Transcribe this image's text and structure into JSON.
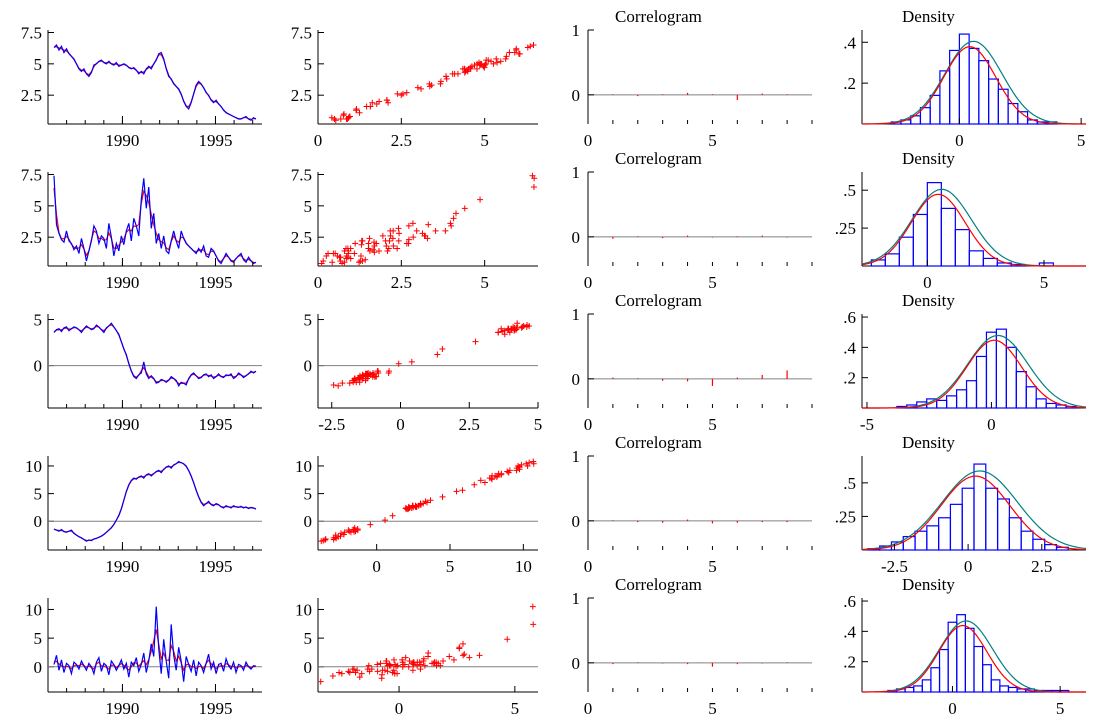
{
  "colors": {
    "actual": "#0000ff",
    "fitted": "#ff0000",
    "normal": "#008080",
    "hist": "#0000ff",
    "zero": "#808080",
    "axis": "#000000"
  },
  "chart_data": [
    {
      "type": "line",
      "series": [
        {
          "values": [
            6.3,
            6.5,
            6.1,
            6.4,
            5.9,
            6.2,
            5.8,
            5.6,
            5.4,
            5.0,
            4.6,
            4.4,
            4.6,
            4.2,
            4.0,
            4.3,
            4.9,
            5.0,
            5.2,
            5.3,
            5.1,
            5.0,
            5.2,
            5.0,
            4.9,
            5.1,
            4.8,
            4.9,
            5.0,
            4.9,
            4.7,
            4.6,
            4.7,
            4.5,
            4.2,
            4.4,
            4.2,
            4.6,
            4.8,
            4.6,
            5.0,
            5.3,
            5.8,
            5.9,
            5.4,
            4.6,
            4.0,
            3.8,
            3.4,
            3.2,
            3.0,
            2.6,
            2.0,
            1.6,
            1.4,
            1.9,
            2.6,
            3.3,
            3.6,
            3.4,
            3.1,
            2.7,
            2.5,
            2.1,
            1.9,
            2.1,
            1.8,
            1.6,
            1.3,
            1.1,
            1.0,
            0.9,
            0.8,
            0.7,
            0.6,
            0.6,
            0.7,
            0.8,
            0.6,
            0.5,
            0.7,
            0.6
          ]
        }
      ],
      "x_ticks": [
        1990,
        1995
      ],
      "ylim": [
        0.2,
        7.7
      ],
      "y_ticks": [
        2.5,
        5,
        7.5
      ],
      "y_tick_labels": [
        "2.5",
        "5",
        "7.5"
      ]
    },
    {
      "type": "scatter",
      "x_ticks": [
        0,
        2.5,
        5
      ],
      "x_tick_labels": [
        "0",
        "2.5",
        "5"
      ],
      "xlim": [
        0,
        6.6
      ],
      "ylim": [
        0.2,
        7.7
      ],
      "y_ticks": [
        2.5,
        5,
        7.5
      ],
      "y_tick_labels": [
        "2.5",
        "5",
        "7.5"
      ],
      "spread": 0.3
    },
    {
      "type": "bar",
      "title": "Correlogram",
      "values": [
        0.01,
        -0.02,
        0.01,
        0.03,
        0.01,
        -0.08,
        0.02,
        0.01
      ],
      "xlim": [
        0,
        9
      ],
      "ylim": [
        -0.45,
        1
      ],
      "x_ticks": [
        0,
        5
      ],
      "y_ticks": [
        0,
        1
      ]
    },
    {
      "type": "bar",
      "title": "Density",
      "bins": [
        -2.8,
        -2.4,
        -2.0,
        -1.6,
        -1.2,
        -0.8,
        -0.4,
        0.0,
        0.4,
        0.8,
        1.2,
        1.6,
        2.0,
        2.4,
        2.8,
        3.2,
        3.6
      ],
      "values": [
        0.01,
        0.02,
        0.04,
        0.08,
        0.14,
        0.26,
        0.36,
        0.44,
        0.37,
        0.31,
        0.22,
        0.17,
        0.1,
        0.06,
        0.02,
        0.01,
        0.01
      ],
      "xlim": [
        -4,
        5.2
      ],
      "ylim": [
        0,
        0.46
      ],
      "x_ticks": [
        0,
        5
      ],
      "y_ticks": [
        0.2,
        0.4
      ],
      "y_tick_labels": [
        ".2",
        ".4"
      ]
    },
    {
      "type": "line",
      "series": [
        {
          "values": [
            7.4,
            3.5,
            2.8,
            2.3,
            2.1,
            3.0,
            2.2,
            2.0,
            1.5,
            1.8,
            1.2,
            2.4,
            1.6,
            0.6,
            1.4,
            2.2,
            3.4,
            3.0,
            2.0,
            2.6,
            2.4,
            1.6,
            3.6,
            2.5,
            1.0,
            2.0,
            1.4,
            2.6,
            1.9,
            3.0,
            3.6,
            2.2,
            4.0,
            3.4,
            2.6,
            5.5,
            7.2,
            4.8,
            6.5,
            3.2,
            4.4,
            2.0,
            2.8,
            1.6,
            2.6,
            1.4,
            1.2,
            2.2,
            3.0,
            2.2,
            1.6,
            3.0,
            2.4,
            2.0,
            1.8,
            1.6,
            1.4,
            1.2,
            1.6,
            1.3,
            1.8,
            1.0,
            0.9,
            1.6,
            1.4,
            1.0,
            0.6,
            0.4,
            0.8,
            1.2,
            0.9,
            0.6,
            0.5,
            0.8,
            1.0,
            1.2,
            0.7,
            0.5,
            0.9,
            0.6,
            0.4,
            0.5
          ]
        }
      ],
      "x_ticks": [
        1990,
        1995
      ],
      "ylim": [
        0.2,
        7.7
      ],
      "y_ticks": [
        2.5,
        5,
        7.5
      ],
      "y_tick_labels": [
        "2.5",
        "5",
        "7.5"
      ]
    },
    {
      "type": "scatter",
      "x_ticks": [
        0,
        2.5,
        5
      ],
      "x_tick_labels": [
        "0",
        "2.5",
        "5"
      ],
      "xlim": [
        0,
        6.6
      ],
      "ylim": [
        0.2,
        7.7
      ],
      "y_ticks": [
        2.5,
        5,
        7.5
      ],
      "y_tick_labels": [
        "2.5",
        "5",
        "7.5"
      ],
      "spread": 0.9
    },
    {
      "type": "bar",
      "title": "Correlogram",
      "values": [
        -0.03,
        0.01,
        -0.02,
        0.02,
        -0.01,
        0.01,
        0.02,
        -0.01
      ],
      "xlim": [
        0,
        9
      ],
      "ylim": [
        -0.45,
        1
      ],
      "x_ticks": [
        0,
        5
      ],
      "y_ticks": [
        0,
        1
      ]
    },
    {
      "type": "bar",
      "title": "Density",
      "bins": [
        -2.4,
        -1.8,
        -1.2,
        -0.6,
        0.0,
        0.6,
        1.2,
        1.8,
        2.4,
        3.0,
        3.6,
        4.2,
        4.8,
        5.4
      ],
      "values": [
        0.04,
        0.08,
        0.19,
        0.34,
        0.55,
        0.38,
        0.24,
        0.1,
        0.05,
        0.02,
        0.01,
        0.0,
        0.02,
        0.0
      ],
      "xlim": [
        -2.8,
        6.8
      ],
      "ylim": [
        0,
        0.62
      ],
      "x_ticks": [
        0,
        5
      ],
      "y_ticks": [
        0.25,
        0.5
      ],
      "y_tick_labels": [
        ".25",
        ".5"
      ]
    },
    {
      "type": "line",
      "series": [
        {
          "values": [
            3.6,
            3.9,
            4.0,
            3.7,
            4.1,
            4.2,
            3.8,
            4.0,
            4.2,
            4.1,
            3.9,
            3.6,
            4.0,
            4.3,
            4.1,
            3.9,
            4.0,
            4.4,
            4.2,
            3.9,
            3.6,
            4.1,
            4.3,
            4.6,
            4.2,
            3.8,
            3.4,
            2.6,
            1.8,
            1.2,
            0.2,
            -0.6,
            -1.2,
            -1.4,
            -1.0,
            -0.8,
            0.4,
            -0.9,
            -1.4,
            -1.1,
            -1.4,
            -1.9,
            -1.8,
            -1.5,
            -1.6,
            -1.8,
            -1.6,
            -1.2,
            -1.4,
            -1.6,
            -2.2,
            -1.8,
            -1.9,
            -2.1,
            -1.4,
            -1.0,
            -0.8,
            -1.1,
            -1.4,
            -1.3,
            -1.0,
            -0.9,
            -1.2,
            -1.0,
            -1.4,
            -1.2,
            -0.9,
            -1.2,
            -1.3,
            -1.0,
            -1.1,
            -0.9,
            -1.4,
            -1.2,
            -0.8,
            -1.0,
            -1.3,
            -1.1,
            -0.9,
            -0.6,
            -0.8,
            -0.6
          ]
        }
      ],
      "x_ticks": [
        1990,
        1995
      ],
      "ylim": [
        -4.6,
        5.6
      ],
      "y_ticks": [
        0,
        5
      ],
      "y_tick_labels": [
        "0",
        "5"
      ],
      "zero": true
    },
    {
      "type": "scatter",
      "x_ticks": [
        -2.5,
        0,
        2.5,
        5
      ],
      "x_tick_labels": [
        "-2.5",
        "0",
        "2.5",
        "5"
      ],
      "xlim": [
        -3,
        5
      ],
      "ylim": [
        -4.6,
        5.6
      ],
      "y_ticks": [
        0,
        5
      ],
      "y_tick_labels": [
        "0",
        "5"
      ],
      "spread": 0.4,
      "zero": true
    },
    {
      "type": "bar",
      "title": "Correlogram",
      "values": [
        0.02,
        0.01,
        -0.03,
        -0.04,
        -0.11,
        0.02,
        0.06,
        0.13
      ],
      "xlim": [
        0,
        9
      ],
      "ylim": [
        -0.45,
        1
      ],
      "x_ticks": [
        0,
        5
      ],
      "y_ticks": [
        0,
        1
      ]
    },
    {
      "type": "bar",
      "title": "Density",
      "bins": [
        -3.8,
        -3.4,
        -3.0,
        -2.6,
        -2.2,
        -1.8,
        -1.4,
        -1.0,
        -0.6,
        -0.2,
        0.2,
        0.6,
        1.0,
        1.4,
        1.8,
        2.2,
        2.6,
        3.0
      ],
      "values": [
        0.01,
        0.02,
        0.04,
        0.06,
        0.05,
        0.08,
        0.12,
        0.18,
        0.34,
        0.5,
        0.52,
        0.4,
        0.24,
        0.14,
        0.06,
        0.03,
        0.02,
        0.01
      ],
      "xlim": [
        -5.2,
        3.8
      ],
      "ylim": [
        0,
        0.62
      ],
      "x_ticks": [
        -5,
        0
      ],
      "y_ticks": [
        0.2,
        0.4,
        0.6
      ],
      "y_tick_labels": [
        ".2",
        ".4",
        ".6"
      ]
    },
    {
      "type": "line",
      "series": [
        {
          "values": [
            -1.4,
            -1.6,
            -1.8,
            -1.5,
            -1.9,
            -2.0,
            -1.8,
            -1.6,
            -2.2,
            -2.5,
            -2.8,
            -3.0,
            -3.3,
            -3.6,
            -3.4,
            -3.5,
            -3.2,
            -3.1,
            -2.9,
            -2.7,
            -2.4,
            -2.0,
            -1.6,
            -1.2,
            -0.6,
            0.2,
            1.0,
            2.2,
            3.8,
            5.4,
            6.6,
            7.4,
            7.8,
            7.6,
            8.0,
            8.2,
            7.8,
            8.4,
            8.6,
            8.2,
            8.6,
            9.0,
            9.2,
            8.8,
            9.4,
            9.8,
            10.0,
            9.6,
            10.2,
            10.4,
            10.8,
            10.6,
            10.4,
            10.0,
            9.2,
            8.2,
            7.0,
            5.6,
            4.4,
            3.4,
            2.8,
            3.2,
            3.6,
            3.0,
            2.8,
            3.2,
            3.0,
            2.6,
            2.4,
            2.8,
            2.6,
            2.4,
            2.8,
            2.6,
            2.5,
            2.7,
            2.4,
            2.6,
            2.3,
            2.5,
            2.4,
            2.2
          ]
        }
      ],
      "x_ticks": [
        1990,
        1995
      ],
      "ylim": [
        -5.2,
        11.8
      ],
      "y_ticks": [
        0,
        5,
        10
      ],
      "y_tick_labels": [
        "0",
        "5",
        "10"
      ],
      "zero": true
    },
    {
      "type": "scatter",
      "x_ticks": [
        0,
        5,
        10
      ],
      "x_tick_labels": [
        "0",
        "5",
        "10"
      ],
      "xlim": [
        -4,
        11
      ],
      "ylim": [
        -5.2,
        11.8
      ],
      "y_ticks": [
        0,
        5,
        10
      ],
      "y_tick_labels": [
        "0",
        "5",
        "10"
      ],
      "spread": 0.4,
      "zero": true
    },
    {
      "type": "bar",
      "title": "Correlogram",
      "values": [
        0.01,
        -0.02,
        -0.03,
        0.02,
        -0.04,
        -0.03,
        -0.02,
        -0.02
      ],
      "xlim": [
        0,
        9
      ],
      "ylim": [
        -0.45,
        1
      ],
      "x_ticks": [
        0,
        5
      ],
      "y_ticks": [
        0,
        1
      ]
    },
    {
      "type": "bar",
      "title": "Density",
      "bins": [
        -3.4,
        -3.0,
        -2.6,
        -2.2,
        -1.8,
        -1.4,
        -1.0,
        -0.6,
        -0.2,
        0.2,
        0.6,
        1.0,
        1.4,
        1.8,
        2.2,
        2.6,
        3.0
      ],
      "values": [
        0.01,
        0.03,
        0.06,
        0.1,
        0.14,
        0.18,
        0.24,
        0.34,
        0.46,
        0.64,
        0.46,
        0.38,
        0.24,
        0.14,
        0.08,
        0.04,
        0.02
      ],
      "xlim": [
        -3.6,
        4.0
      ],
      "ylim": [
        0,
        0.7
      ],
      "x_ticks": [
        -2.5,
        0,
        2.5
      ],
      "x_tick_labels": [
        "-2.5",
        "0",
        "2.5"
      ],
      "y_ticks": [
        0.25,
        0.5
      ],
      "y_tick_labels": [
        ".25",
        ".5"
      ]
    },
    {
      "type": "line",
      "series": [
        {
          "values": [
            0.4,
            2.0,
            -0.6,
            1.2,
            -1.0,
            0.6,
            0.2,
            -1.2,
            0.8,
            0.4,
            -0.4,
            1.0,
            0.2,
            -0.6,
            0.6,
            0.0,
            -1.2,
            0.8,
            1.6,
            -0.8,
            0.6,
            0.2,
            -1.4,
            1.0,
            0.4,
            -0.6,
            0.2,
            1.2,
            -0.4,
            0.6,
            -1.8,
            0.8,
            0.2,
            1.6,
            -0.8,
            0.4,
            2.4,
            -1.0,
            1.0,
            4.0,
            1.8,
            10.5,
            3.2,
            -1.2,
            4.8,
            1.0,
            -2.0,
            7.4,
            2.0,
            -0.6,
            3.4,
            1.0,
            -2.6,
            1.8,
            0.4,
            -0.8,
            1.2,
            -1.6,
            0.8,
            0.2,
            -1.0,
            0.6,
            2.2,
            -0.4,
            0.8,
            -1.2,
            0.4,
            0.6,
            -0.8,
            1.4,
            0.2,
            -0.4,
            0.8,
            -1.0,
            0.4,
            0.2,
            -0.6,
            0.8,
            0.0,
            -0.4,
            0.2,
            0.1
          ]
        }
      ],
      "x_ticks": [
        1990,
        1995
      ],
      "ylim": [
        -4.4,
        12
      ],
      "y_ticks": [
        0,
        5,
        10
      ],
      "y_tick_labels": [
        "0",
        "5",
        "10"
      ],
      "zero": true
    },
    {
      "type": "scatter",
      "x_ticks": [
        0,
        5
      ],
      "x_tick_labels": [
        "0",
        "5"
      ],
      "xlim": [
        -3.5,
        6
      ],
      "ylim": [
        -4.4,
        12
      ],
      "y_ticks": [
        0,
        5,
        10
      ],
      "y_tick_labels": [
        "0",
        "5",
        "10"
      ],
      "spread": 1.6,
      "zero": true
    },
    {
      "type": "bar",
      "title": "Correlogram",
      "values": [
        -0.02,
        0.01,
        -0.01,
        -0.02,
        -0.06,
        -0.02,
        -0.01,
        0.01
      ],
      "xlim": [
        0,
        9
      ],
      "ylim": [
        -0.45,
        1
      ],
      "x_ticks": [
        0,
        5
      ],
      "y_ticks": [
        0,
        1
      ]
    },
    {
      "type": "bar",
      "title": "Density",
      "bins": [
        -3.0,
        -2.6,
        -2.2,
        -1.8,
        -1.4,
        -1.0,
        -0.6,
        -0.2,
        0.2,
        0.6,
        1.0,
        1.4,
        1.8,
        2.2,
        2.6,
        3.0,
        3.4,
        3.8,
        4.2,
        4.6,
        5.0
      ],
      "values": [
        0.01,
        0.02,
        0.03,
        0.04,
        0.08,
        0.16,
        0.28,
        0.46,
        0.51,
        0.42,
        0.3,
        0.18,
        0.08,
        0.04,
        0.03,
        0.02,
        0.02,
        0.01,
        0.01,
        0.01,
        0.01
      ],
      "xlim": [
        -4.2,
        6.2
      ],
      "ylim": [
        0,
        0.62
      ],
      "x_ticks": [
        0,
        5
      ],
      "y_ticks": [
        0.2,
        0.4,
        0.6
      ],
      "y_tick_labels": [
        ".2",
        ".4",
        ".6"
      ]
    }
  ]
}
